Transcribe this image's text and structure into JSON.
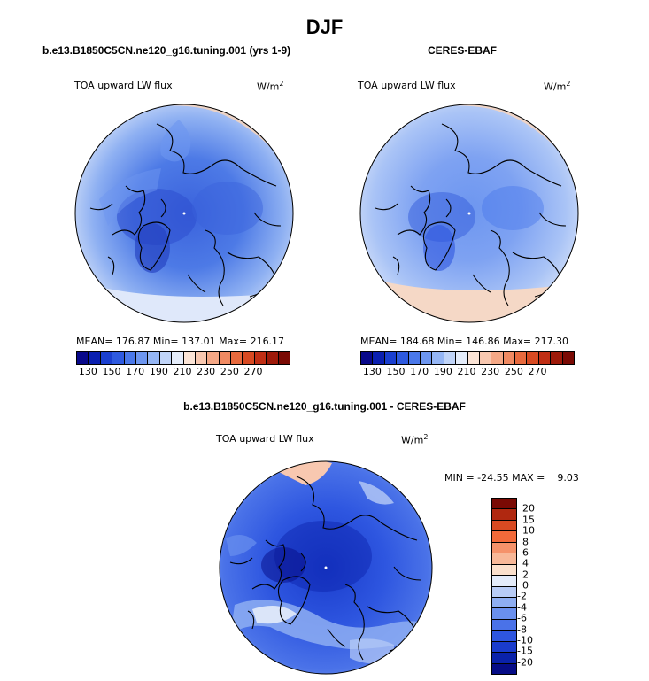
{
  "page_title": "DJF",
  "panels": {
    "model": {
      "title": "b.e13.B1850C5CN.ne120_g16.tuning.001 (yrs 1-9)",
      "var_label": "TOA upward LW flux",
      "units": "W/m",
      "units_sup": "2",
      "stats": "MEAN= 176.87   Min= 137.01   Max= 216.17"
    },
    "obs": {
      "title": "CERES-EBAF",
      "var_label": "TOA upward LW flux",
      "units": "W/m",
      "units_sup": "2",
      "stats": "MEAN= 184.68   Min= 146.86   Max= 217.30"
    },
    "diff": {
      "title": "b.e13.B1850C5CN.ne120_g16.tuning.001 - CERES-EBAF",
      "var_label": "TOA upward LW flux",
      "units": "W/m",
      "units_sup": "2",
      "minmax": "MIN = -24.55 MAX =    9.03"
    }
  },
  "colorbar_abs": {
    "colors": [
      "#08088a",
      "#0a1fb0",
      "#1a3fd0",
      "#2e5ae0",
      "#4a78ea",
      "#6d96f0",
      "#95b6f5",
      "#c0d4f8",
      "#e4ecfa",
      "#fbe4d6",
      "#f8c8b0",
      "#f5a886",
      "#f08a62",
      "#e86a3e",
      "#d84a22",
      "#c02e14",
      "#9e1a0a",
      "#7a0a04"
    ],
    "tick_labels": [
      "130",
      "150",
      "170",
      "190",
      "210",
      "230",
      "250",
      "270"
    ]
  },
  "colorbar_diff": {
    "colors": [
      "#7a0a04",
      "#b02810",
      "#d84a22",
      "#f26a3a",
      "#f5926a",
      "#f8b898",
      "#fbe0cc",
      "#e4ecfa",
      "#b8ccf6",
      "#8eaef2",
      "#6a90ee",
      "#4a72e8",
      "#2e56e0",
      "#1a3ccc",
      "#0a22aa",
      "#060c86"
    ],
    "tick_labels": [
      "20",
      "15",
      "10",
      "8",
      "6",
      "4",
      "2",
      "0",
      "-2",
      "-4",
      "-6",
      "-8",
      "-10",
      "-15",
      "-20"
    ]
  }
}
